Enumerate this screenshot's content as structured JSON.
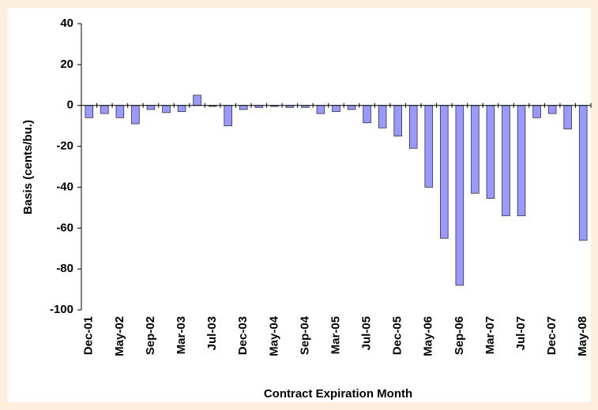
{
  "chart_data": {
    "type": "bar",
    "y_label": "Basis (cents/bu.)",
    "x_label": "Contract Expiration Month",
    "categories": [
      "Dec-01",
      null,
      "May-02",
      null,
      "Sep-02",
      null,
      "Mar-03",
      null,
      "Jul-03",
      null,
      "Dec-03",
      null,
      "May-04",
      null,
      "Sep-04",
      null,
      "Mar-05",
      null,
      "Jul-05",
      null,
      "Dec-05",
      null,
      "May-06",
      null,
      "Sep-06",
      null,
      "Mar-07",
      null,
      "Jul-07",
      null,
      "Dec-07",
      null,
      "May-08"
    ],
    "values": [
      -6,
      -4,
      -6,
      -9,
      -2,
      -3.5,
      -3,
      5,
      -0.5,
      -10,
      -2,
      -1,
      -0.5,
      -1,
      -1,
      -4,
      -3,
      -2,
      -8.5,
      -11,
      -15,
      -21,
      -40,
      -65,
      -88,
      -43,
      -45.5,
      -54,
      -54,
      -6,
      -4,
      -11.5,
      -66
    ],
    "color": "#9999ff",
    "ylim": [
      -100,
      40
    ],
    "yticks": [
      -100,
      -80,
      -60,
      -40,
      -20,
      0,
      20,
      40
    ]
  }
}
